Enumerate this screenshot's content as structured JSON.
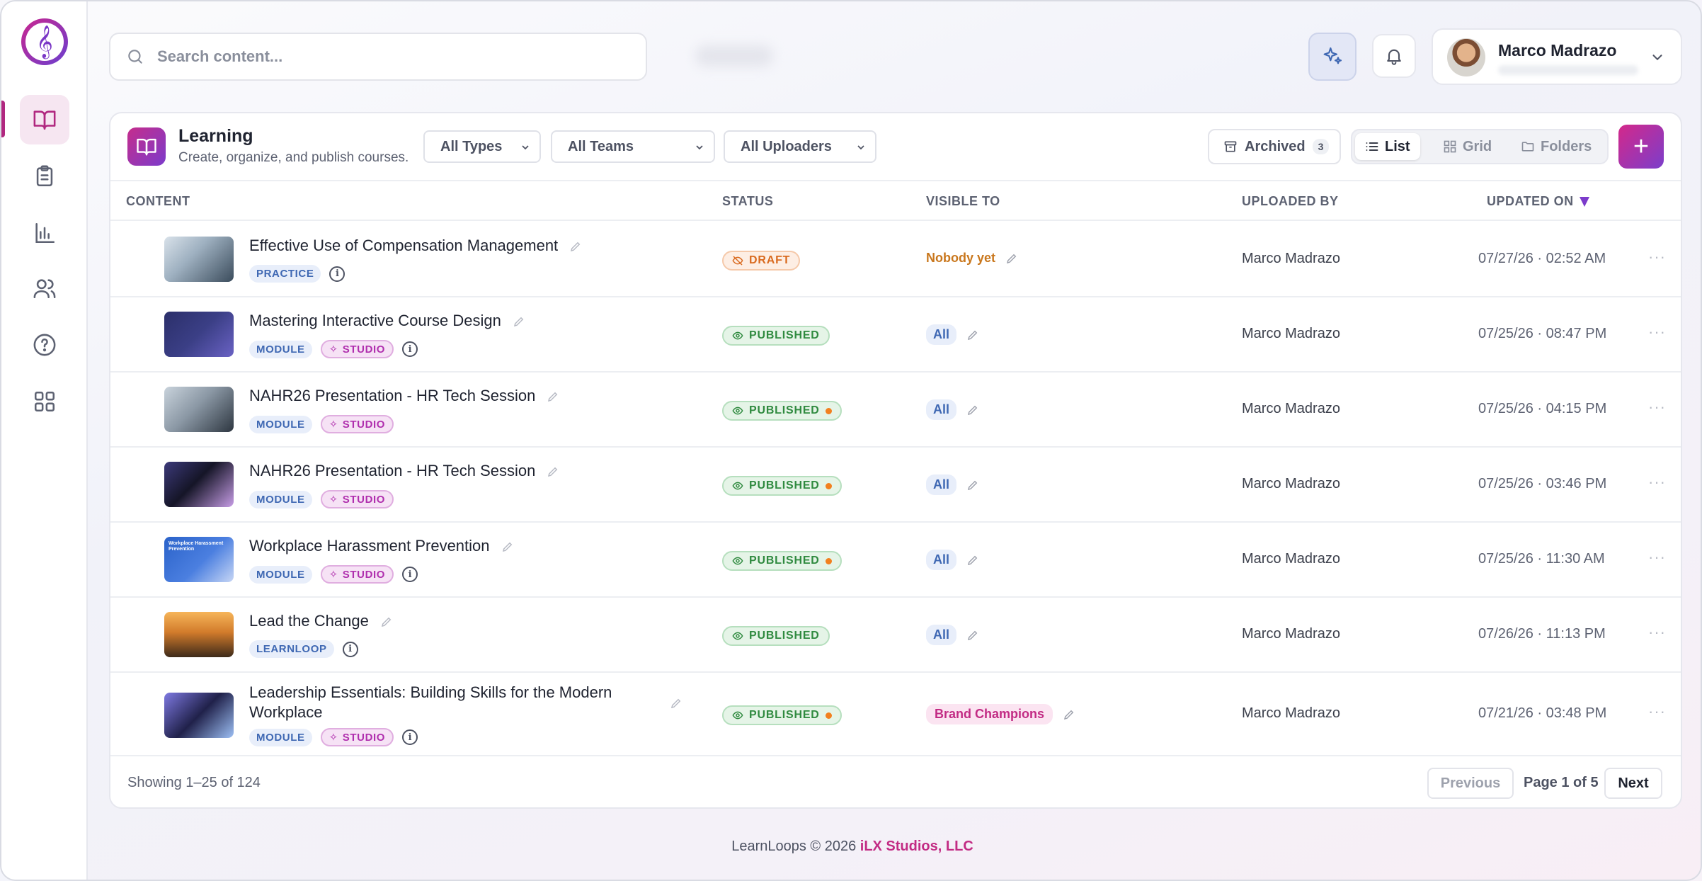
{
  "search": {
    "placeholder": "Search content..."
  },
  "user": {
    "name": "Marco Madrazo"
  },
  "page": {
    "title": "Learning",
    "subtitle": "Create, organize, and publish courses."
  },
  "filters": {
    "types": "All Types",
    "teams": "All Teams",
    "uploaders": "All Uploaders"
  },
  "archived": {
    "label": "Archived",
    "count": "3"
  },
  "views": {
    "list": "List",
    "grid": "Grid",
    "folders": "Folders"
  },
  "add_label": "+",
  "columns": {
    "content": "CONTENT",
    "status": "STATUS",
    "visible_to": "VISIBLE TO",
    "uploaded_by": "UPLOADED BY",
    "updated_on": "UPDATED ON"
  },
  "rows": [
    {
      "title": "Effective Use of Compensation Management",
      "tags": [
        "PRACTICE"
      ],
      "studio": false,
      "status": "DRAFT",
      "status_dot": false,
      "visible": "Nobody yet",
      "uploader": "Marco Madrazo",
      "updated": "07/27/26 · 02:52 AM"
    },
    {
      "title": "Mastering Interactive Course Design",
      "tags": [
        "MODULE"
      ],
      "studio": true,
      "status": "PUBLISHED",
      "status_dot": false,
      "visible": "All",
      "uploader": "Marco Madrazo",
      "updated": "07/25/26 · 08:47 PM"
    },
    {
      "title": "NAHR26 Presentation - HR Tech Session",
      "tags": [
        "MODULE"
      ],
      "studio": true,
      "status": "PUBLISHED",
      "status_dot": true,
      "visible": "All",
      "uploader": "Marco Madrazo",
      "updated": "07/25/26 · 04:15 PM"
    },
    {
      "title": "NAHR26 Presentation - HR Tech Session",
      "tags": [
        "MODULE"
      ],
      "studio": true,
      "status": "PUBLISHED",
      "status_dot": true,
      "visible": "All",
      "uploader": "Marco Madrazo",
      "updated": "07/25/26 · 03:46 PM"
    },
    {
      "title": "Workplace Harassment Prevention",
      "tags": [
        "MODULE"
      ],
      "studio": true,
      "status": "PUBLISHED",
      "status_dot": true,
      "visible": "All",
      "uploader": "Marco Madrazo",
      "updated": "07/25/26 · 11:30 AM"
    },
    {
      "title": "Lead the Change",
      "tags": [
        "LEARNLOOP"
      ],
      "studio": false,
      "status": "PUBLISHED",
      "status_dot": false,
      "visible": "All",
      "uploader": "Marco Madrazo",
      "updated": "07/26/26 · 11:13 PM"
    },
    {
      "title": "Leadership Essentials: Building Skills for the Modern Workplace",
      "tags": [
        "MODULE"
      ],
      "studio": true,
      "status": "PUBLISHED",
      "status_dot": true,
      "visible": "Brand Champions",
      "uploader": "Marco Madrazo",
      "updated": "07/21/26 · 03:48 PM"
    }
  ],
  "studio_label": "STUDIO",
  "thumb_text": {
    "row5": "Workplace Harassment Prevention"
  },
  "pagination": {
    "showing": "Showing 1–25 of 124",
    "previous": "Previous",
    "page": "Page 1 of 5",
    "next": "Next"
  },
  "footer": {
    "prefix": "LearnLoops © 2026 ",
    "brand": "iLX Studios, LLC"
  },
  "colors": {
    "accent": "#c22b84",
    "accent2": "#7c3bcb",
    "published": "#2f8a3f",
    "draft": "#d96a1f"
  }
}
